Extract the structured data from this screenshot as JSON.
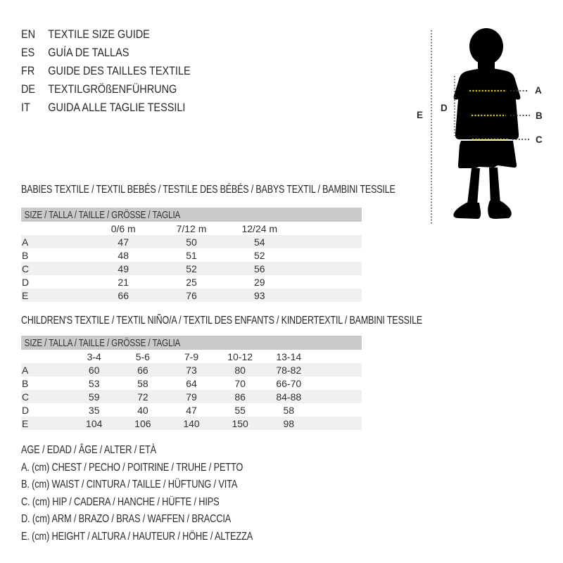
{
  "languages": [
    {
      "code": "EN",
      "label": "TEXTILE SIZE GUIDE"
    },
    {
      "code": "ES",
      "label": "GUÍA DE TALLAS"
    },
    {
      "code": "FR",
      "label": "GUIDE DES TAILLES TEXTILE"
    },
    {
      "code": "DE",
      "label": "TEXTILGRÖßENFÜHRUNG"
    },
    {
      "code": "IT",
      "label": "GUIDA ALLE TAGLIE TESSILI"
    }
  ],
  "figure": {
    "labels": {
      "a": "A",
      "b": "B",
      "c": "C",
      "d": "D",
      "e": "E"
    },
    "accent_color": "#d9c525",
    "silhouette_color": "#000000",
    "dotted_line_color": "#4a4a4a"
  },
  "babies": {
    "heading": "BABIES TEXTILE / TEXTIL BEBÉS / TESTILE DES BÉBÉS / BABYS TEXTIL / BAMBINI TESSILE",
    "size_banner": "SIZE / TALLA / TAILLE / GRÖSSE / TAGLIA",
    "columns": [
      "0/6 m",
      "7/12 m",
      "12/24 m"
    ],
    "rows": [
      {
        "label": "A",
        "values": [
          "47",
          "50",
          "54"
        ]
      },
      {
        "label": "B",
        "values": [
          "48",
          "51",
          "52"
        ]
      },
      {
        "label": "C",
        "values": [
          "49",
          "52",
          "56"
        ]
      },
      {
        "label": "D",
        "values": [
          "21",
          "25",
          "29"
        ]
      },
      {
        "label": "E",
        "values": [
          "66",
          "76",
          "93"
        ]
      }
    ]
  },
  "children": {
    "heading": "CHILDREN'S TEXTILE / TEXTIL NIÑO/A / TEXTIL DES ENFANTS / KINDERTEXTIL / BAMBINI TESSILE",
    "size_banner": "SIZE / TALLA / TAILLE / GRÖSSE / TAGLIA",
    "columns": [
      "3-4",
      "5-6",
      "7-9",
      "10-12",
      "13-14"
    ],
    "rows": [
      {
        "label": "A",
        "values": [
          "60",
          "66",
          "73",
          "80",
          "78-82"
        ]
      },
      {
        "label": "B",
        "values": [
          "53",
          "58",
          "64",
          "70",
          "66-70"
        ]
      },
      {
        "label": "C",
        "values": [
          "59",
          "72",
          "79",
          "86",
          "84-88"
        ]
      },
      {
        "label": "D",
        "values": [
          "35",
          "40",
          "47",
          "55",
          "58"
        ]
      },
      {
        "label": "E",
        "values": [
          "104",
          "106",
          "140",
          "150",
          "98"
        ]
      }
    ]
  },
  "legend": {
    "lines": [
      "AGE / EDAD / ÂGE / ALTER / ETÀ",
      "A. (cm) CHEST / PECHO / POITRINE / TRUHE / PETTO",
      "B. (cm) WAIST / CINTURA / TAILLE / HÜFTUNG / VITA",
      "C. (cm) HIP / CADERA / HANCHE / HÜFTE / HIPS",
      "D. (cm) ARM / BRAZO / BRAS / WAFFEN / BRACCIA",
      "E. (cm) HEIGHT / ALTURA / HAUTEUR / HÖHE / ALTEZZA"
    ]
  }
}
